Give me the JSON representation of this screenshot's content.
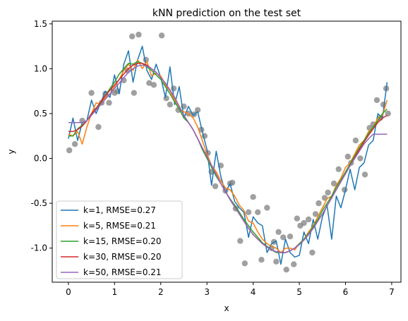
{
  "chart_data": {
    "type": "line",
    "title": "kNN prediction on the test set",
    "xlabel": "x",
    "ylabel": "y",
    "xlim": [
      -0.35,
      7.2
    ],
    "ylim": [
      -1.38,
      1.53
    ],
    "x_ticks": [
      0,
      1,
      2,
      3,
      4,
      5,
      6,
      7
    ],
    "y_ticks": [
      -1.0,
      -0.5,
      0.0,
      0.5,
      1.0,
      1.5
    ],
    "legend_position": "lower-left",
    "grid": false,
    "scatter": {
      "color": "#808080",
      "x": [
        0.02,
        0.14,
        0.3,
        0.5,
        0.65,
        0.72,
        0.8,
        0.88,
        1.0,
        1.06,
        1.2,
        1.28,
        1.38,
        1.42,
        1.52,
        1.68,
        1.75,
        1.85,
        2.02,
        2.12,
        2.2,
        2.28,
        2.38,
        2.5,
        2.6,
        2.72,
        2.8,
        2.88,
        2.95,
        3.02,
        3.1,
        3.18,
        3.3,
        3.4,
        3.5,
        3.55,
        3.62,
        3.72,
        3.82,
        3.9,
        4.0,
        4.1,
        4.18,
        4.3,
        4.4,
        4.45,
        4.5,
        4.55,
        4.65,
        4.72,
        4.8,
        4.88,
        4.95,
        5.02,
        5.1,
        5.2,
        5.28,
        5.35,
        5.42,
        5.55,
        5.62,
        5.75,
        5.85,
        5.98,
        6.05,
        6.12,
        6.22,
        6.32,
        6.42,
        6.52,
        6.6,
        6.68,
        6.75,
        6.82,
        6.88,
        6.92
      ],
      "y": [
        0.09,
        0.16,
        0.42,
        0.73,
        0.35,
        0.62,
        0.72,
        0.62,
        0.73,
        0.75,
        0.87,
        0.98,
        1.36,
        0.73,
        1.38,
        1.1,
        0.84,
        0.82,
        1.37,
        0.67,
        0.6,
        0.78,
        0.54,
        0.58,
        0.5,
        0.49,
        0.54,
        0.32,
        0.25,
        0.06,
        -0.15,
        -0.31,
        -0.08,
        -0.36,
        -0.28,
        -0.27,
        -0.56,
        -0.92,
        -1.17,
        -0.6,
        -0.43,
        -0.6,
        -1.13,
        -0.55,
        -1.0,
        -0.93,
        -1.15,
        -0.82,
        -0.88,
        -1.24,
        -0.87,
        -1.18,
        -0.67,
        -0.75,
        -0.72,
        -0.68,
        -1.05,
        -0.62,
        -0.5,
        -0.44,
        -0.38,
        -0.28,
        -0.12,
        -0.35,
        0.02,
        -0.05,
        0.2,
        0.0,
        -0.18,
        0.34,
        0.38,
        0.65,
        0.45,
        0.6,
        0.78,
        0.5
      ]
    },
    "series": [
      {
        "name": "k=1, RMSE=0.27",
        "color": "#1f77b4",
        "x": [
          0.0,
          0.1,
          0.2,
          0.3,
          0.4,
          0.5,
          0.6,
          0.7,
          0.8,
          0.9,
          1.0,
          1.1,
          1.2,
          1.3,
          1.4,
          1.5,
          1.6,
          1.7,
          1.8,
          1.9,
          2.0,
          2.1,
          2.2,
          2.3,
          2.4,
          2.5,
          2.6,
          2.7,
          2.8,
          2.9,
          3.0,
          3.1,
          3.2,
          3.3,
          3.4,
          3.5,
          3.6,
          3.7,
          3.8,
          3.9,
          4.0,
          4.1,
          4.2,
          4.3,
          4.4,
          4.5,
          4.6,
          4.7,
          4.8,
          4.9,
          5.0,
          5.1,
          5.2,
          5.3,
          5.4,
          5.5,
          5.6,
          5.7,
          5.8,
          5.9,
          6.0,
          6.1,
          6.2,
          6.3,
          6.4,
          6.5,
          6.6,
          6.7,
          6.8,
          6.9
        ],
        "y": [
          0.22,
          0.45,
          0.2,
          0.4,
          0.42,
          0.65,
          0.5,
          0.62,
          0.75,
          0.68,
          0.93,
          0.72,
          1.05,
          1.2,
          0.85,
          1.1,
          1.25,
          0.98,
          0.88,
          1.05,
          0.9,
          0.68,
          1.02,
          0.6,
          0.8,
          0.45,
          0.58,
          0.48,
          0.52,
          0.3,
          0.1,
          -0.3,
          0.08,
          -0.2,
          -0.38,
          -0.28,
          -0.48,
          -0.55,
          -0.6,
          -0.88,
          -0.65,
          -0.72,
          -0.75,
          -1.05,
          -0.95,
          -0.92,
          -1.18,
          -0.9,
          -1.05,
          -1.1,
          -1.08,
          -0.82,
          -0.95,
          -0.68,
          -0.9,
          -0.65,
          -0.52,
          -0.9,
          -0.42,
          -0.55,
          -0.35,
          -0.12,
          -0.35,
          -0.1,
          -0.05,
          0.15,
          0.2,
          0.5,
          0.45,
          0.85
        ]
      },
      {
        "name": "k=5, RMSE=0.21",
        "color": "#ff7f0e",
        "x": [
          0.0,
          0.1,
          0.2,
          0.3,
          0.4,
          0.5,
          0.6,
          0.7,
          0.8,
          0.9,
          1.0,
          1.1,
          1.2,
          1.3,
          1.4,
          1.5,
          1.6,
          1.7,
          1.8,
          1.9,
          2.0,
          2.1,
          2.2,
          2.3,
          2.4,
          2.5,
          2.6,
          2.7,
          2.8,
          2.9,
          3.0,
          3.1,
          3.2,
          3.3,
          3.4,
          3.5,
          3.6,
          3.7,
          3.8,
          3.9,
          4.0,
          4.1,
          4.2,
          4.3,
          4.4,
          4.5,
          4.6,
          4.7,
          4.8,
          4.9,
          5.0,
          5.1,
          5.2,
          5.3,
          5.4,
          5.5,
          5.6,
          5.7,
          5.8,
          5.9,
          6.0,
          6.1,
          6.2,
          6.3,
          6.4,
          6.5,
          6.6,
          6.7,
          6.8,
          6.9
        ],
        "y": [
          0.27,
          0.25,
          0.3,
          0.16,
          0.35,
          0.5,
          0.62,
          0.6,
          0.68,
          0.72,
          0.8,
          0.88,
          0.98,
          1.05,
          0.98,
          1.1,
          1.0,
          1.08,
          0.92,
          0.95,
          0.92,
          0.82,
          0.75,
          0.65,
          0.55,
          0.52,
          0.5,
          0.45,
          0.35,
          0.2,
          0.05,
          -0.08,
          -0.15,
          -0.25,
          -0.33,
          -0.35,
          -0.42,
          -0.52,
          -0.58,
          -0.7,
          -0.72,
          -0.82,
          -0.9,
          -0.95,
          -0.98,
          -1.0,
          -1.05,
          -1.0,
          -1.0,
          -1.02,
          -0.95,
          -0.9,
          -0.82,
          -0.75,
          -0.65,
          -0.55,
          -0.45,
          -0.42,
          -0.3,
          -0.22,
          -0.1,
          -0.05,
          0.05,
          0.15,
          0.2,
          0.3,
          0.35,
          0.45,
          0.48,
          0.65
        ]
      },
      {
        "name": "k=15, RMSE=0.20",
        "color": "#2ca02c",
        "x": [
          0.0,
          0.1,
          0.2,
          0.3,
          0.4,
          0.5,
          0.6,
          0.7,
          0.8,
          0.9,
          1.0,
          1.1,
          1.2,
          1.3,
          1.4,
          1.5,
          1.6,
          1.7,
          1.8,
          1.9,
          2.0,
          2.1,
          2.2,
          2.3,
          2.4,
          2.5,
          2.6,
          2.7,
          2.8,
          2.9,
          3.0,
          3.1,
          3.2,
          3.3,
          3.4,
          3.5,
          3.6,
          3.7,
          3.8,
          3.9,
          4.0,
          4.1,
          4.2,
          4.3,
          4.4,
          4.5,
          4.6,
          4.7,
          4.8,
          4.9,
          5.0,
          5.1,
          5.2,
          5.3,
          5.4,
          5.5,
          5.6,
          5.7,
          5.8,
          5.9,
          6.0,
          6.1,
          6.2,
          6.3,
          6.4,
          6.5,
          6.6,
          6.7,
          6.8,
          6.9
        ],
        "y": [
          0.25,
          0.25,
          0.33,
          0.37,
          0.42,
          0.5,
          0.55,
          0.62,
          0.7,
          0.78,
          0.85,
          0.94,
          1.0,
          1.06,
          1.05,
          1.08,
          1.06,
          1.02,
          0.98,
          0.93,
          0.88,
          0.8,
          0.72,
          0.63,
          0.55,
          0.45,
          0.4,
          0.32,
          0.22,
          0.1,
          0.0,
          -0.1,
          -0.2,
          -0.28,
          -0.37,
          -0.45,
          -0.52,
          -0.6,
          -0.68,
          -0.75,
          -0.82,
          -0.88,
          -0.94,
          -0.98,
          -1.02,
          -1.05,
          -1.05,
          -1.05,
          -1.03,
          -1.0,
          -0.95,
          -0.9,
          -0.84,
          -0.76,
          -0.68,
          -0.58,
          -0.5,
          -0.42,
          -0.32,
          -0.24,
          -0.15,
          -0.06,
          0.03,
          0.12,
          0.2,
          0.28,
          0.35,
          0.42,
          0.5,
          0.55
        ]
      },
      {
        "name": "k=30, RMSE=0.20",
        "color": "#d62728",
        "x": [
          0.0,
          0.1,
          0.2,
          0.3,
          0.4,
          0.5,
          0.6,
          0.7,
          0.8,
          0.9,
          1.0,
          1.1,
          1.2,
          1.3,
          1.4,
          1.5,
          1.6,
          1.7,
          1.8,
          1.9,
          2.0,
          2.1,
          2.2,
          2.3,
          2.4,
          2.5,
          2.6,
          2.7,
          2.8,
          2.9,
          3.0,
          3.1,
          3.2,
          3.3,
          3.4,
          3.5,
          3.6,
          3.7,
          3.8,
          3.9,
          4.0,
          4.1,
          4.2,
          4.3,
          4.4,
          4.5,
          4.6,
          4.7,
          4.8,
          4.9,
          5.0,
          5.1,
          5.2,
          5.3,
          5.4,
          5.5,
          5.6,
          5.7,
          5.8,
          5.9,
          6.0,
          6.1,
          6.2,
          6.3,
          6.4,
          6.5,
          6.6,
          6.7,
          6.8,
          6.9
        ],
        "y": [
          0.3,
          0.3,
          0.32,
          0.36,
          0.42,
          0.5,
          0.56,
          0.63,
          0.7,
          0.76,
          0.82,
          0.88,
          0.94,
          1.0,
          1.04,
          1.06,
          1.06,
          1.04,
          1.0,
          0.96,
          0.9,
          0.84,
          0.76,
          0.68,
          0.58,
          0.48,
          0.4,
          0.32,
          0.22,
          0.12,
          0.02,
          -0.08,
          -0.18,
          -0.28,
          -0.37,
          -0.46,
          -0.54,
          -0.62,
          -0.7,
          -0.78,
          -0.85,
          -0.9,
          -0.95,
          -0.99,
          -1.02,
          -1.04,
          -1.05,
          -1.05,
          -1.03,
          -1.0,
          -0.96,
          -0.91,
          -0.85,
          -0.78,
          -0.7,
          -0.62,
          -0.53,
          -0.44,
          -0.35,
          -0.26,
          -0.17,
          -0.08,
          0.01,
          0.1,
          0.18,
          0.26,
          0.33,
          0.4,
          0.45,
          0.48
        ]
      },
      {
        "name": "k=50, RMSE=0.21",
        "color": "#9467bd",
        "x": [
          0.0,
          0.1,
          0.2,
          0.3,
          0.4,
          0.5,
          0.6,
          0.7,
          0.8,
          0.9,
          1.0,
          1.1,
          1.2,
          1.3,
          1.4,
          1.5,
          1.6,
          1.7,
          1.8,
          1.9,
          2.0,
          2.1,
          2.2,
          2.3,
          2.4,
          2.5,
          2.6,
          2.7,
          2.8,
          2.9,
          3.0,
          3.1,
          3.2,
          3.3,
          3.4,
          3.5,
          3.6,
          3.7,
          3.8,
          3.9,
          4.0,
          4.1,
          4.2,
          4.3,
          4.4,
          4.5,
          4.6,
          4.7,
          4.8,
          4.9,
          5.0,
          5.1,
          5.2,
          5.3,
          5.4,
          5.5,
          5.6,
          5.7,
          5.8,
          5.9,
          6.0,
          6.1,
          6.2,
          6.3,
          6.4,
          6.5,
          6.6,
          6.7,
          6.8,
          6.9
        ],
        "y": [
          0.4,
          0.4,
          0.4,
          0.4,
          0.42,
          0.48,
          0.54,
          0.6,
          0.66,
          0.72,
          0.78,
          0.84,
          0.9,
          0.96,
          1.0,
          1.03,
          1.04,
          1.03,
          1.0,
          0.96,
          0.9,
          0.84,
          0.76,
          0.68,
          0.58,
          0.48,
          0.4,
          0.32,
          0.22,
          0.12,
          0.02,
          -0.08,
          -0.18,
          -0.28,
          -0.37,
          -0.46,
          -0.54,
          -0.62,
          -0.7,
          -0.78,
          -0.85,
          -0.9,
          -0.95,
          -0.99,
          -1.02,
          -1.04,
          -1.05,
          -1.05,
          -1.03,
          -1.0,
          -0.96,
          -0.91,
          -0.85,
          -0.78,
          -0.7,
          -0.62,
          -0.53,
          -0.44,
          -0.35,
          -0.26,
          -0.17,
          -0.08,
          0.0,
          0.08,
          0.16,
          0.22,
          0.27,
          0.27,
          0.27,
          0.27
        ]
      }
    ]
  }
}
